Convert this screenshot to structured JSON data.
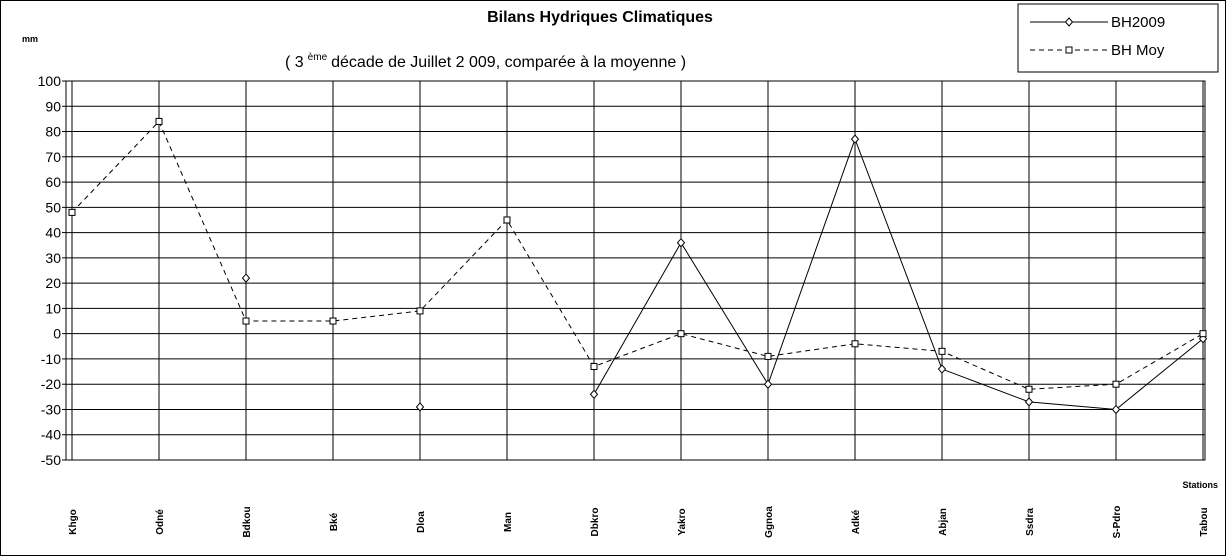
{
  "chart_data": {
    "type": "line",
    "title": "Bilans Hydriques Climatiques",
    "subtitle": {
      "before": "( 3",
      "superscript": "ème",
      "after": "décade de Juillet 2 009, comparée à la moyenne )"
    },
    "y_unit": "mm",
    "x_label": "Stations",
    "categories": [
      "Khgo",
      "Odné",
      "Bdkou",
      "Bké",
      "Dloa",
      "Man",
      "Dbkro",
      "Yakro",
      "Ggnoa",
      "Adké",
      "Abjan",
      "Ssdra",
      "S-Pdro",
      "Tabou"
    ],
    "series": [
      {
        "name": "BH2009",
        "color": "#000000",
        "dash": "solid",
        "marker": "diamond",
        "values": [
          null,
          null,
          22,
          null,
          -29,
          null,
          -24,
          36,
          -20,
          77,
          -14,
          -27,
          -30,
          -2
        ]
      },
      {
        "name": "BH Moy",
        "color": "#000000",
        "dash": "dashed",
        "marker": "square",
        "values": [
          48,
          84,
          5,
          5,
          9,
          45,
          -13,
          0,
          -9,
          -4,
          -7,
          -22,
          -20,
          0
        ]
      }
    ],
    "ylim": [
      -50,
      100
    ],
    "yticks": [
      -50,
      -40,
      -30,
      -20,
      -10,
      0,
      10,
      20,
      30,
      40,
      50,
      60,
      70,
      80,
      90,
      100
    ],
    "grid": true,
    "legend": "upper right"
  }
}
